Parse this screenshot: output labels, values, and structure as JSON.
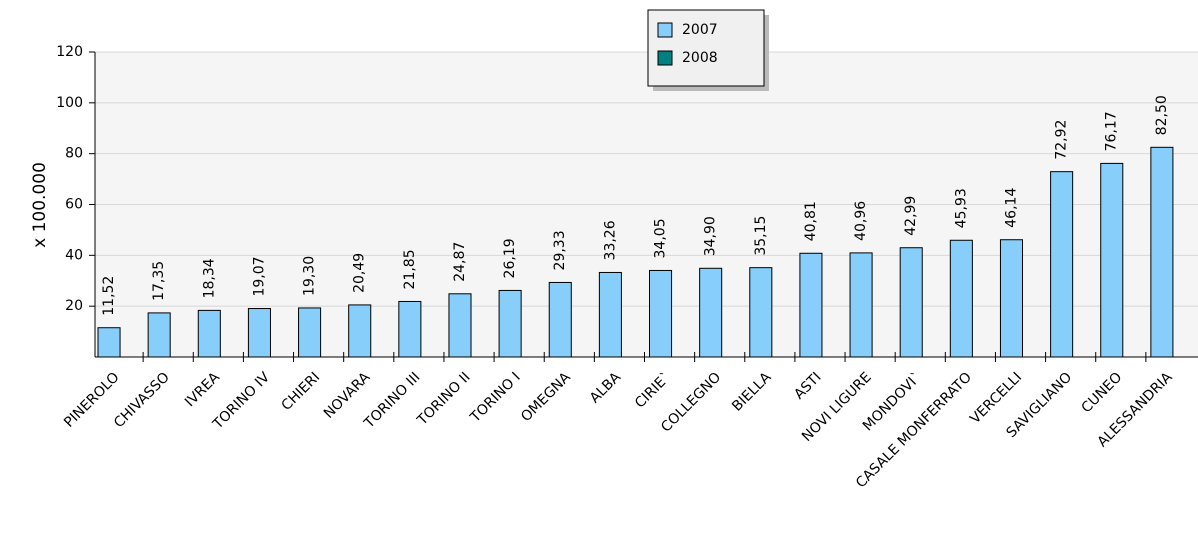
{
  "chart_data": {
    "type": "bar",
    "y_label": "x 100.000",
    "categories": [
      "PINEROLO",
      "CHIVASSO",
      "IVREA",
      "TORINO IV",
      "CHIERI",
      "NOVARA",
      "TORINO III",
      "TORINO II",
      "TORINO I",
      "OMEGNA",
      "ALBA",
      "CIRIE`",
      "COLLEGNO",
      "BIELLA",
      "ASTI",
      "NOVI LIGURE",
      "MONDOVI`",
      "CASALE MONFERRATO",
      "VERCELLI",
      "SAVIGLIANO",
      "CUNEO",
      "ALESSANDRIA"
    ],
    "series": [
      {
        "name": "2007",
        "color": "#87cefa",
        "values": [
          11.52,
          17.35,
          18.34,
          19.07,
          19.3,
          20.49,
          21.85,
          24.87,
          26.19,
          29.33,
          33.26,
          34.05,
          34.9,
          35.15,
          40.81,
          40.96,
          42.99,
          45.93,
          46.14,
          72.92,
          76.17,
          82.5
        ],
        "value_labels": [
          "11,52",
          "17,35",
          "18,34",
          "19,07",
          "19,30",
          "20,49",
          "21,85",
          "24,87",
          "26,19",
          "29,33",
          "33,26",
          "34,05",
          "34,90",
          "35,15",
          "40,81",
          "40,96",
          "42,99",
          "45,93",
          "46,14",
          "72,92",
          "76,17",
          "82,50"
        ]
      },
      {
        "name": "2008",
        "color": "#008080",
        "values": [
          null,
          null,
          null,
          null,
          null,
          null,
          null,
          null,
          null,
          null,
          null,
          null,
          null,
          null,
          null,
          null,
          null,
          null,
          null,
          null,
          null,
          null
        ]
      }
    ],
    "ylim": [
      0,
      120
    ],
    "yticks": [
      20,
      40,
      60,
      80,
      100,
      120
    ],
    "grid": true
  }
}
